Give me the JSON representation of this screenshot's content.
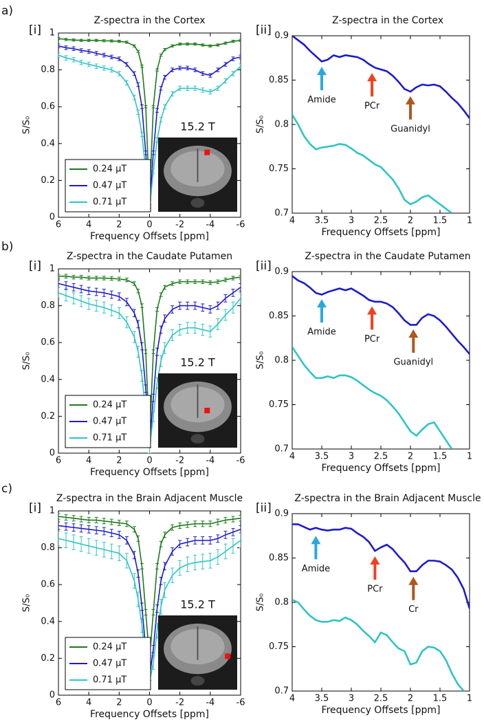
{
  "chart_data": [
    {
      "type": "line",
      "panel": "a)",
      "sub_panel": "[i]",
      "title": "Z-spectra in the Cortex",
      "xlabel": "Frequency Offsets [ppm]",
      "ylabel": "S/S₀",
      "x": [
        6,
        5.5,
        5,
        4.5,
        4,
        3.5,
        3,
        2.5,
        2,
        1.5,
        1,
        0.75,
        0.5,
        0.25,
        0,
        -0.25,
        -0.5,
        -0.75,
        -1,
        -1.5,
        -2,
        -2.5,
        -3,
        -3.5,
        -4,
        -4.5,
        -5,
        -5.5,
        -6
      ],
      "series": [
        {
          "name": "0.24 μT",
          "color": "#1a7a1a",
          "error": 0.006,
          "values": [
            0.97,
            0.965,
            0.962,
            0.96,
            0.96,
            0.96,
            0.958,
            0.957,
            0.955,
            0.95,
            0.93,
            0.9,
            0.82,
            0.6,
            0.1,
            0.6,
            0.8,
            0.88,
            0.91,
            0.93,
            0.94,
            0.94,
            0.94,
            0.935,
            0.93,
            0.935,
            0.945,
            0.955,
            0.96
          ]
        },
        {
          "name": "0.47 μT",
          "color": "#1a1ad0",
          "error": 0.01,
          "values": [
            0.93,
            0.92,
            0.915,
            0.905,
            0.9,
            0.89,
            0.88,
            0.87,
            0.86,
            0.83,
            0.78,
            0.72,
            0.6,
            0.35,
            0.06,
            0.35,
            0.58,
            0.7,
            0.76,
            0.8,
            0.81,
            0.81,
            0.8,
            0.78,
            0.77,
            0.8,
            0.83,
            0.86,
            0.87
          ]
        },
        {
          "name": "0.71 μT",
          "color": "#2ec4c4",
          "error": 0.012,
          "values": [
            0.88,
            0.865,
            0.855,
            0.84,
            0.83,
            0.82,
            0.81,
            0.8,
            0.78,
            0.73,
            0.65,
            0.57,
            0.45,
            0.25,
            0.05,
            0.25,
            0.42,
            0.53,
            0.6,
            0.67,
            0.7,
            0.7,
            0.7,
            0.69,
            0.68,
            0.7,
            0.74,
            0.78,
            0.82
          ]
        }
      ],
      "xlim": [
        6,
        -6
      ],
      "xticks": [
        6,
        4,
        2,
        0,
        -2,
        -4,
        -6
      ],
      "ylim": [
        0,
        1
      ],
      "yticks": [
        0,
        0.2,
        0.4,
        0.6,
        0.8,
        1
      ],
      "legend": "lower left",
      "inset_label": "15.2 T"
    },
    {
      "type": "line",
      "sub_panel": "[ii]",
      "title": "Z-spectra in the Cortex",
      "xlabel": "Frequency Offsets [ppm]",
      "ylabel": "S/S₀",
      "x": [
        4,
        3.9,
        3.8,
        3.7,
        3.6,
        3.5,
        3.4,
        3.3,
        3.2,
        3.1,
        3,
        2.9,
        2.8,
        2.7,
        2.6,
        2.5,
        2.4,
        2.3,
        2.2,
        2.1,
        2,
        1.9,
        1.8,
        1.7,
        1.6,
        1.5,
        1.4,
        1.3,
        1.2,
        1.1,
        1
      ],
      "series": [
        {
          "color": "#1a1ad0",
          "values": [
            0.9,
            0.895,
            0.89,
            0.883,
            0.877,
            0.871,
            0.873,
            0.878,
            0.876,
            0.878,
            0.877,
            0.876,
            0.873,
            0.868,
            0.864,
            0.862,
            0.86,
            0.855,
            0.848,
            0.84,
            0.837,
            0.842,
            0.845,
            0.844,
            0.845,
            0.843,
            0.837,
            0.83,
            0.824,
            0.816,
            0.807
          ]
        },
        {
          "color": "#2ec4c4",
          "values": [
            0.811,
            0.8,
            0.787,
            0.778,
            0.772,
            0.774,
            0.775,
            0.776,
            0.778,
            0.777,
            0.773,
            0.768,
            0.765,
            0.76,
            0.755,
            0.752,
            0.745,
            0.738,
            0.728,
            0.715,
            0.71,
            0.713,
            0.718,
            0.72,
            0.715,
            0.71,
            0.705,
            0.7,
            null,
            null,
            null
          ]
        }
      ],
      "xlim": [
        4,
        1
      ],
      "xticks": [
        4,
        3.5,
        3,
        2.5,
        2,
        1.5,
        1
      ],
      "ylim": [
        0.7,
        0.9
      ],
      "yticks": [
        0.7,
        0.75,
        0.8,
        0.85,
        0.9
      ],
      "annotations": [
        {
          "text": "Amide",
          "x": 3.5,
          "y": 0.868,
          "color": "#29a8e0"
        },
        {
          "text": "PCr",
          "x": 2.65,
          "y": 0.861,
          "color": "#f04020"
        },
        {
          "text": "Guanidyl",
          "x": 2,
          "y": 0.835,
          "color": "#b0581c"
        }
      ]
    },
    {
      "type": "line",
      "panel": "b)",
      "sub_panel": "[i]",
      "title": "Z-spectra in the Caudate Putamen",
      "xlabel": "Frequency Offsets [ppm]",
      "ylabel": "S/S₀",
      "x": [
        6,
        5.5,
        5,
        4.5,
        4,
        3.5,
        3,
        2.5,
        2,
        1.5,
        1,
        0.75,
        0.5,
        0.25,
        0,
        -0.25,
        -0.5,
        -0.75,
        -1,
        -1.5,
        -2,
        -2.5,
        -3,
        -3.5,
        -4,
        -4.5,
        -5,
        -5.5,
        -6
      ],
      "series": [
        {
          "name": "0.24 μT",
          "color": "#1a7a1a",
          "error": 0.01,
          "values": [
            0.96,
            0.96,
            0.955,
            0.955,
            0.95,
            0.95,
            0.95,
            0.948,
            0.945,
            0.94,
            0.92,
            0.88,
            0.8,
            0.55,
            0.08,
            0.55,
            0.78,
            0.86,
            0.9,
            0.92,
            0.93,
            0.93,
            0.93,
            0.93,
            0.925,
            0.93,
            0.94,
            0.95,
            0.955
          ]
        },
        {
          "name": "0.47 μT",
          "color": "#1a1ad0",
          "error": 0.02,
          "values": [
            0.92,
            0.91,
            0.9,
            0.89,
            0.88,
            0.875,
            0.87,
            0.86,
            0.85,
            0.82,
            0.76,
            0.7,
            0.58,
            0.35,
            0.05,
            0.3,
            0.55,
            0.67,
            0.73,
            0.78,
            0.8,
            0.8,
            0.8,
            0.79,
            0.78,
            0.8,
            0.84,
            0.87,
            0.9
          ]
        },
        {
          "name": "0.71 μT",
          "color": "#2ec4c4",
          "error": 0.03,
          "values": [
            0.87,
            0.855,
            0.84,
            0.825,
            0.81,
            0.8,
            0.79,
            0.775,
            0.76,
            0.71,
            0.63,
            0.55,
            0.42,
            0.22,
            0.03,
            0.2,
            0.38,
            0.5,
            0.57,
            0.64,
            0.67,
            0.68,
            0.68,
            0.67,
            0.66,
            0.7,
            0.75,
            0.79,
            0.84
          ]
        }
      ],
      "xlim": [
        6,
        -6
      ],
      "xticks": [
        6,
        4,
        2,
        0,
        -2,
        -4,
        -6
      ],
      "ylim": [
        0,
        1
      ],
      "yticks": [
        0,
        0.2,
        0.4,
        0.6,
        0.8,
        1
      ],
      "legend": "lower left",
      "inset_label": "15.2 T"
    },
    {
      "type": "line",
      "sub_panel": "[ii]",
      "title": "Z-spectra in the Caudate Putamen",
      "xlabel": "Frequency Offsets [ppm]",
      "ylabel": "S/S₀",
      "x": [
        4,
        3.9,
        3.8,
        3.7,
        3.6,
        3.5,
        3.4,
        3.3,
        3.2,
        3.1,
        3,
        2.9,
        2.8,
        2.7,
        2.6,
        2.5,
        2.4,
        2.3,
        2.2,
        2.1,
        2,
        1.9,
        1.8,
        1.7,
        1.6,
        1.5,
        1.4,
        1.3,
        1.2,
        1.1,
        1
      ],
      "series": [
        {
          "color": "#1a1ad0",
          "values": [
            0.895,
            0.89,
            0.887,
            0.882,
            0.876,
            0.874,
            0.877,
            0.879,
            0.881,
            0.879,
            0.881,
            0.877,
            0.873,
            0.868,
            0.866,
            0.866,
            0.864,
            0.86,
            0.853,
            0.845,
            0.84,
            0.84,
            0.848,
            0.852,
            0.85,
            0.845,
            0.838,
            0.83,
            0.822,
            0.815,
            0.807
          ]
        },
        {
          "color": "#2ec4c4",
          "values": [
            0.815,
            0.805,
            0.795,
            0.787,
            0.78,
            0.78,
            0.782,
            0.78,
            0.783,
            0.783,
            0.781,
            0.777,
            0.772,
            0.767,
            0.763,
            0.76,
            0.755,
            0.748,
            0.74,
            0.73,
            0.72,
            0.715,
            0.722,
            0.728,
            0.73,
            0.72,
            0.71,
            0.7,
            null,
            null,
            null
          ]
        }
      ],
      "xlim": [
        4,
        1
      ],
      "xticks": [
        4,
        3.5,
        3,
        2.5,
        2,
        1.5,
        1
      ],
      "ylim": [
        0.7,
        0.9
      ],
      "yticks": [
        0.7,
        0.75,
        0.8,
        0.85,
        0.9
      ],
      "annotations": [
        {
          "text": "Amide",
          "x": 3.5,
          "y": 0.872,
          "color": "#29a8e0"
        },
        {
          "text": "PCr",
          "x": 2.65,
          "y": 0.864,
          "color": "#f04020"
        },
        {
          "text": "Guanidyl",
          "x": 1.95,
          "y": 0.838,
          "color": "#b0581c"
        }
      ]
    },
    {
      "type": "line",
      "panel": "c)",
      "sub_panel": "[i]",
      "title": "Z-spectra in the Brain Adjacent Muscle",
      "xlabel": "Frequency Offsets [ppm]",
      "ylabel": "S/S₀",
      "x": [
        6,
        5.5,
        5,
        4.5,
        4,
        3.5,
        3,
        2.5,
        2,
        1.5,
        1,
        0.75,
        0.5,
        0.25,
        0,
        -0.25,
        -0.5,
        -0.75,
        -1,
        -1.5,
        -2,
        -2.5,
        -3,
        -3.5,
        -4,
        -4.5,
        -5,
        -5.5,
        -6
      ],
      "series": [
        {
          "name": "0.24 μT",
          "color": "#1a7a1a",
          "error": 0.015,
          "values": [
            0.97,
            0.965,
            0.96,
            0.955,
            0.95,
            0.95,
            0.945,
            0.94,
            0.935,
            0.93,
            0.9,
            0.85,
            0.7,
            0.45,
            0.2,
            0.45,
            0.7,
            0.82,
            0.87,
            0.91,
            0.92,
            0.925,
            0.93,
            0.93,
            0.93,
            0.94,
            0.95,
            0.955,
            0.96
          ]
        },
        {
          "name": "0.47 μT",
          "color": "#1a1ad0",
          "error": 0.02,
          "values": [
            0.92,
            0.915,
            0.91,
            0.905,
            0.9,
            0.895,
            0.89,
            0.88,
            0.87,
            0.84,
            0.76,
            0.66,
            0.48,
            0.25,
            0.1,
            0.25,
            0.47,
            0.62,
            0.7,
            0.78,
            0.82,
            0.83,
            0.84,
            0.84,
            0.84,
            0.85,
            0.87,
            0.885,
            0.9
          ]
        },
        {
          "name": "0.71 μT",
          "color": "#2ec4c4",
          "error": 0.04,
          "values": [
            0.85,
            0.84,
            0.83,
            0.82,
            0.81,
            0.8,
            0.79,
            0.78,
            0.77,
            0.73,
            0.62,
            0.52,
            0.38,
            0.18,
            0.07,
            0.18,
            0.35,
            0.48,
            0.57,
            0.65,
            0.69,
            0.71,
            0.72,
            0.725,
            0.73,
            0.75,
            0.78,
            0.81,
            0.84
          ]
        }
      ],
      "xlim": [
        6,
        -6
      ],
      "xticks": [
        6,
        4,
        2,
        0,
        -2,
        -4,
        -6
      ],
      "ylim": [
        0,
        1
      ],
      "yticks": [
        0,
        0.2,
        0.4,
        0.6,
        0.8,
        1
      ],
      "legend": "lower left",
      "inset_label": "15.2 T"
    },
    {
      "type": "line",
      "sub_panel": "[ii]",
      "title": "Z-spectra in the Brain Adjacent Muscle",
      "xlabel": "Frequency Offsets [ppm]",
      "ylabel": "S/S₀",
      "x": [
        4,
        3.9,
        3.8,
        3.7,
        3.6,
        3.5,
        3.4,
        3.3,
        3.2,
        3.1,
        3,
        2.9,
        2.8,
        2.7,
        2.6,
        2.5,
        2.4,
        2.3,
        2.2,
        2.1,
        2,
        1.9,
        1.8,
        1.7,
        1.6,
        1.5,
        1.4,
        1.3,
        1.2,
        1.1,
        1
      ],
      "series": [
        {
          "color": "#1a1ad0",
          "values": [
            0.888,
            0.888,
            0.885,
            0.882,
            0.884,
            0.882,
            0.881,
            0.882,
            0.882,
            0.884,
            0.883,
            0.878,
            0.874,
            0.868,
            0.858,
            0.862,
            0.865,
            0.86,
            0.852,
            0.845,
            0.835,
            0.835,
            0.842,
            0.847,
            0.847,
            0.846,
            0.842,
            0.837,
            0.828,
            0.815,
            0.793
          ]
        },
        {
          "color": "#2ec4c4",
          "values": [
            0.803,
            0.8,
            0.792,
            0.785,
            0.78,
            0.778,
            0.778,
            0.78,
            0.779,
            0.783,
            0.78,
            0.775,
            0.768,
            0.762,
            0.755,
            0.766,
            0.763,
            0.755,
            0.748,
            0.745,
            0.73,
            0.732,
            0.745,
            0.75,
            0.749,
            0.745,
            0.735,
            0.72,
            0.708,
            0.7,
            null
          ]
        }
      ],
      "xlim": [
        4,
        1
      ],
      "xticks": [
        4,
        3.5,
        3,
        2.5,
        2,
        1.5,
        1
      ],
      "ylim": [
        0.7,
        0.9
      ],
      "yticks": [
        0.7,
        0.75,
        0.8,
        0.85,
        0.9
      ],
      "annotations": [
        {
          "text": "Amide",
          "x": 3.6,
          "y": 0.878,
          "color": "#29a8e0"
        },
        {
          "text": "PCr",
          "x": 2.6,
          "y": 0.855,
          "color": "#f04020"
        },
        {
          "text": "Cr",
          "x": 1.95,
          "y": 0.832,
          "color": "#b0581c"
        }
      ]
    }
  ]
}
